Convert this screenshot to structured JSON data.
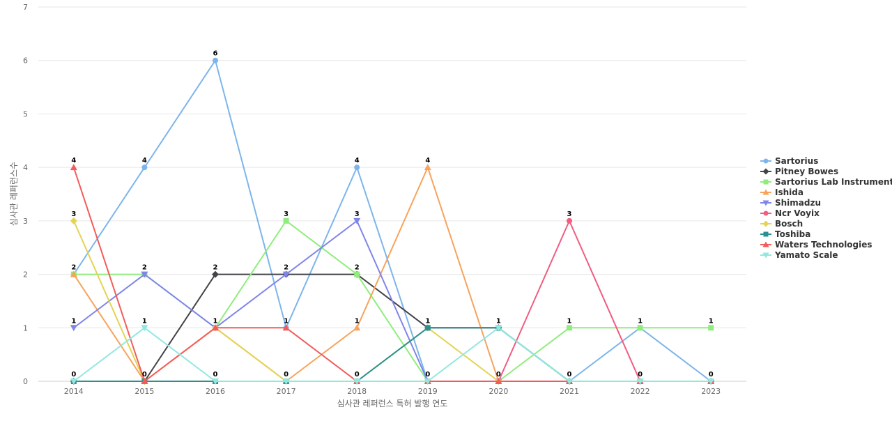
{
  "chart_data": {
    "type": "line",
    "title": "",
    "xlabel": "심사관 레퍼런스 특허 발행 연도",
    "ylabel": "심사관 레퍼런스수",
    "categories": [
      "2014",
      "2015",
      "2016",
      "2017",
      "2018",
      "2019",
      "2020",
      "2021",
      "2022",
      "2023"
    ],
    "ylim": [
      0,
      7
    ],
    "yticks": [
      0,
      1,
      2,
      3,
      4,
      5,
      6,
      7
    ],
    "grid": true,
    "legend_position": "right",
    "series": [
      {
        "name": "Sartorius",
        "color": "#7cb5ec",
        "marker": "circle",
        "values": [
          2,
          4,
          6,
          1,
          4,
          0,
          0,
          0,
          1,
          0
        ]
      },
      {
        "name": "Pitney Bowes",
        "color": "#434348",
        "marker": "diamond",
        "values": [
          0,
          0,
          2,
          2,
          2,
          1,
          1,
          0,
          0,
          0
        ]
      },
      {
        "name": "Sartorius Lab Instruments",
        "color": "#90ed7d",
        "marker": "square",
        "values": [
          2,
          2,
          1,
          3,
          2,
          0,
          0,
          1,
          1,
          1
        ]
      },
      {
        "name": "Ishida",
        "color": "#f7a35c",
        "marker": "triangle",
        "values": [
          2,
          0,
          1,
          0,
          1,
          4,
          0,
          0,
          0,
          0
        ]
      },
      {
        "name": "Shimadzu",
        "color": "#8085e9",
        "marker": "triangle-down",
        "values": [
          1,
          2,
          1,
          2,
          3,
          0,
          0,
          0,
          0,
          0
        ]
      },
      {
        "name": "Ncr Voyix",
        "color": "#f15c80",
        "marker": "circle",
        "values": [
          0,
          0,
          0,
          0,
          0,
          0,
          0,
          3,
          0,
          0
        ]
      },
      {
        "name": "Bosch",
        "color": "#e4d354",
        "marker": "diamond",
        "values": [
          3,
          0,
          1,
          0,
          0,
          1,
          0,
          0,
          0,
          0
        ]
      },
      {
        "name": "Toshiba",
        "color": "#2b908f",
        "marker": "square",
        "values": [
          0,
          0,
          0,
          0,
          0,
          1,
          1,
          0,
          0,
          0
        ]
      },
      {
        "name": "Waters Technologies",
        "color": "#f45b5b",
        "marker": "triangle",
        "values": [
          4,
          0,
          1,
          1,
          0,
          0,
          0,
          0,
          0,
          0
        ]
      },
      {
        "name": "Yamato Scale",
        "color": "#91e8e1",
        "marker": "triangle-down",
        "values": [
          0,
          1,
          0,
          0,
          0,
          0,
          1,
          0,
          0,
          0
        ]
      }
    ],
    "data_labels": [
      {
        "x": "2014",
        "text": "4",
        "series": "Waters Technologies"
      },
      {
        "x": "2014",
        "text": "3",
        "series": "Bosch"
      },
      {
        "x": "2014",
        "text": "2",
        "series": "Sartorius"
      },
      {
        "x": "2014",
        "text": "1",
        "series": "Shimadzu"
      },
      {
        "x": "2014",
        "text": "0",
        "series": "Pitney Bowes"
      },
      {
        "x": "2015",
        "text": "4",
        "series": "Sartorius"
      },
      {
        "x": "2015",
        "text": "2",
        "series": "Shimadzu"
      },
      {
        "x": "2015",
        "text": "1",
        "series": "Yamato Scale"
      },
      {
        "x": "2015",
        "text": "0",
        "series": "Pitney Bowes"
      },
      {
        "x": "2016",
        "text": "6",
        "series": "Sartorius"
      },
      {
        "x": "2016",
        "text": "2",
        "series": "Pitney Bowes"
      },
      {
        "x": "2016",
        "text": "1",
        "series": "Sartorius Lab Instruments"
      },
      {
        "x": "2016",
        "text": "0",
        "series": "Toshiba"
      },
      {
        "x": "2017",
        "text": "3",
        "series": "Sartorius Lab Instruments"
      },
      {
        "x": "2017",
        "text": "2",
        "series": "Pitney Bowes"
      },
      {
        "x": "2017",
        "text": "1",
        "series": "Sartorius"
      },
      {
        "x": "2017",
        "text": "0",
        "series": "Ishida"
      },
      {
        "x": "2018",
        "text": "4",
        "series": "Sartorius"
      },
      {
        "x": "2018",
        "text": "3",
        "series": "Shimadzu"
      },
      {
        "x": "2018",
        "text": "2",
        "series": "Pitney Bowes"
      },
      {
        "x": "2018",
        "text": "1",
        "series": "Ishida"
      },
      {
        "x": "2018",
        "text": "0",
        "series": "Toshiba"
      },
      {
        "x": "2019",
        "text": "4",
        "series": "Ishida"
      },
      {
        "x": "2019",
        "text": "1",
        "series": "Toshiba"
      },
      {
        "x": "2019",
        "text": "0",
        "series": "Sartorius"
      },
      {
        "x": "2020",
        "text": "1",
        "series": "Toshiba"
      },
      {
        "x": "2020",
        "text": "0",
        "series": "Sartorius"
      },
      {
        "x": "2021",
        "text": "3",
        "series": "Ncr Voyix"
      },
      {
        "x": "2021",
        "text": "1",
        "series": "Sartorius Lab Instruments"
      },
      {
        "x": "2021",
        "text": "0",
        "series": "Sartorius"
      },
      {
        "x": "2022",
        "text": "1",
        "series": "Sartorius"
      },
      {
        "x": "2022",
        "text": "0",
        "series": "Ncr Voyix"
      },
      {
        "x": "2023",
        "text": "1",
        "series": "Sartorius Lab Instruments"
      },
      {
        "x": "2023",
        "text": "0",
        "series": "Sartorius"
      }
    ]
  }
}
